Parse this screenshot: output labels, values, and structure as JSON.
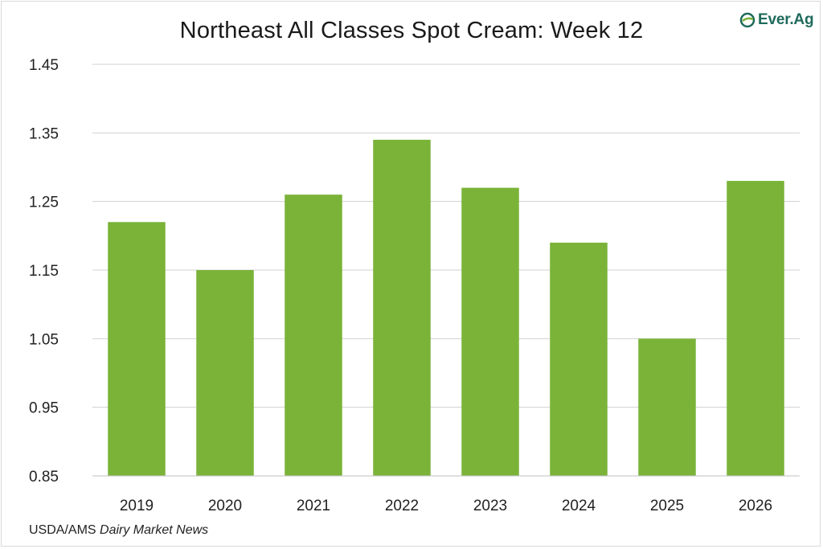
{
  "chart_data": {
    "type": "bar",
    "title": "Northeast All Classes Spot Cream: Week 12",
    "categories": [
      "2019",
      "2020",
      "2021",
      "2022",
      "2023",
      "2024",
      "2025",
      "2026"
    ],
    "values": [
      1.22,
      1.15,
      1.26,
      1.34,
      1.27,
      1.19,
      1.05,
      1.28
    ],
    "ylim": [
      0.85,
      1.45
    ],
    "yticks": [
      "0.85",
      "0.95",
      "1.05",
      "1.15",
      "1.25",
      "1.35",
      "1.45"
    ],
    "xlabel": "",
    "ylabel": "",
    "grid": true,
    "bar_color": "#7ab338"
  },
  "source": {
    "prefix": "USDA/AMS ",
    "italic": "Dairy Market News"
  },
  "logo": {
    "text": "Ever.Ag",
    "icon": "ever-ag-leaf-icon",
    "color": "#1f6b5c"
  }
}
